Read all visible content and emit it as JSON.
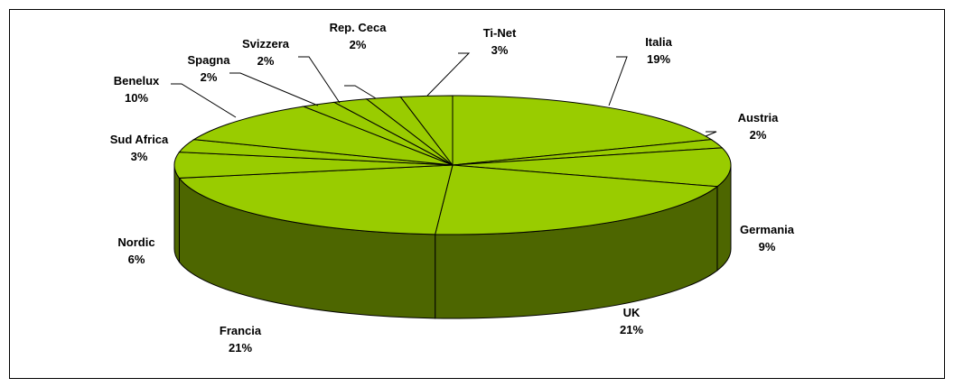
{
  "chart_data": {
    "type": "pie",
    "title": "",
    "style": "3d-exploded-perspective",
    "colors": {
      "top": "#99cc00",
      "side": "#4d6600",
      "edge": "#000000"
    },
    "slices": [
      {
        "label": "Italia",
        "percent_label": "19%",
        "value": 19
      },
      {
        "label": "Austria",
        "percent_label": "2%",
        "value": 2
      },
      {
        "label": "Germania",
        "percent_label": "9%",
        "value": 9
      },
      {
        "label": "UK",
        "percent_label": "21%",
        "value": 21
      },
      {
        "label": "Francia",
        "percent_label": "21%",
        "value": 21
      },
      {
        "label": "Nordic",
        "percent_label": "6%",
        "value": 6
      },
      {
        "label": "Sud Africa",
        "percent_label": "3%",
        "value": 3
      },
      {
        "label": "Benelux",
        "percent_label": "10%",
        "value": 10
      },
      {
        "label": "Spagna",
        "percent_label": "2%",
        "value": 2
      },
      {
        "label": "Svizzera",
        "percent_label": "2%",
        "value": 2
      },
      {
        "label": "Rep. Ceca",
        "percent_label": "2%",
        "value": 2
      },
      {
        "label": "Ti-Net",
        "percent_label": "3%",
        "value": 3
      }
    ]
  }
}
